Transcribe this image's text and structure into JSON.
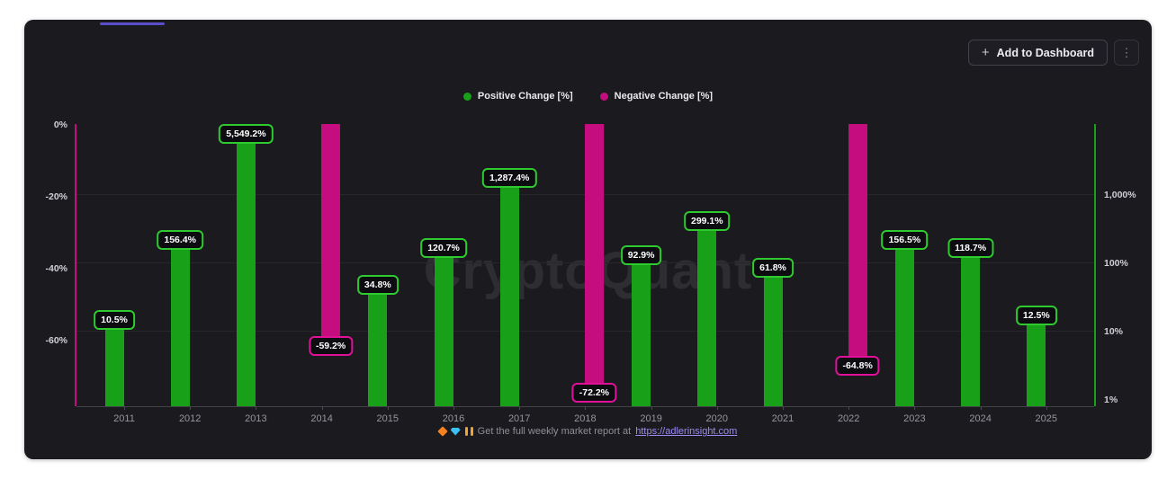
{
  "colors": {
    "accent_top": "#5b4ecb",
    "positive": "#18a018",
    "positive_border": "#2fca2f",
    "negative": "#c60d7f",
    "negative_border": "#e0109a",
    "link": "#9d8bf5",
    "panel_bg": "#1a1a1f"
  },
  "toolbar": {
    "add_button": {
      "label": "Add to Dashboard",
      "plus": "+"
    },
    "kebab": "⋮"
  },
  "legend": {
    "items": [
      {
        "label": "Positive Change [%]",
        "color": "#18a018"
      },
      {
        "label": "Negative Change [%]",
        "color": "#c60d7f"
      }
    ]
  },
  "watermark": "CryptoQuant",
  "footer": {
    "icons": [
      "orange-diamond-icon",
      "blue-gem-icon",
      "raised-hands-icon"
    ],
    "text": "Get the full weekly market report at",
    "link": "https://adlerinsight.com"
  },
  "chart_data": {
    "type": "bar",
    "categories": [
      "2011",
      "2012",
      "2013",
      "2014",
      "2015",
      "2016",
      "2017",
      "2018",
      "2019",
      "2020",
      "2021",
      "2022",
      "2023",
      "2024",
      "2025"
    ],
    "series": [
      {
        "name": "Positive Change [%]",
        "color": "#18a018",
        "label_border": "#2fca2f",
        "axis": "right-log",
        "values": [
          10.5,
          156.4,
          5549.2,
          null,
          34.8,
          120.7,
          1287.4,
          null,
          92.9,
          299.1,
          61.8,
          null,
          156.5,
          118.7,
          12.5
        ]
      },
      {
        "name": "Negative Change [%]",
        "color": "#c60d7f",
        "label_border": "#e0109a",
        "axis": "left-linear",
        "values": [
          null,
          null,
          null,
          -59.2,
          null,
          null,
          null,
          -72.2,
          null,
          null,
          null,
          -64.8,
          null,
          null,
          null
        ]
      }
    ],
    "data_labels": [
      "10.5%",
      "156.4%",
      "5,549.2%",
      "-59.2%",
      "34.8%",
      "120.7%",
      "1,287.4%",
      "-72.2%",
      "92.9%",
      "299.1%",
      "61.8%",
      "-64.8%",
      "156.5%",
      "118.7%",
      "12.5%"
    ],
    "left_axis": {
      "scale": "linear",
      "unit": "%",
      "ticks": [
        {
          "label": "0%",
          "value": 0
        },
        {
          "label": "-20%",
          "value": -20
        },
        {
          "label": "-40%",
          "value": -40
        },
        {
          "label": "-60%",
          "value": -60
        }
      ]
    },
    "right_axis": {
      "scale": "log",
      "unit": "%",
      "ticks": [
        {
          "label": "1,000%",
          "value": 1000
        },
        {
          "label": "100%",
          "value": 100
        },
        {
          "label": "10%",
          "value": 10
        },
        {
          "label": "1%",
          "value": 1
        }
      ]
    },
    "grid": {
      "horizontal": true
    },
    "legend_position": "top-center"
  }
}
